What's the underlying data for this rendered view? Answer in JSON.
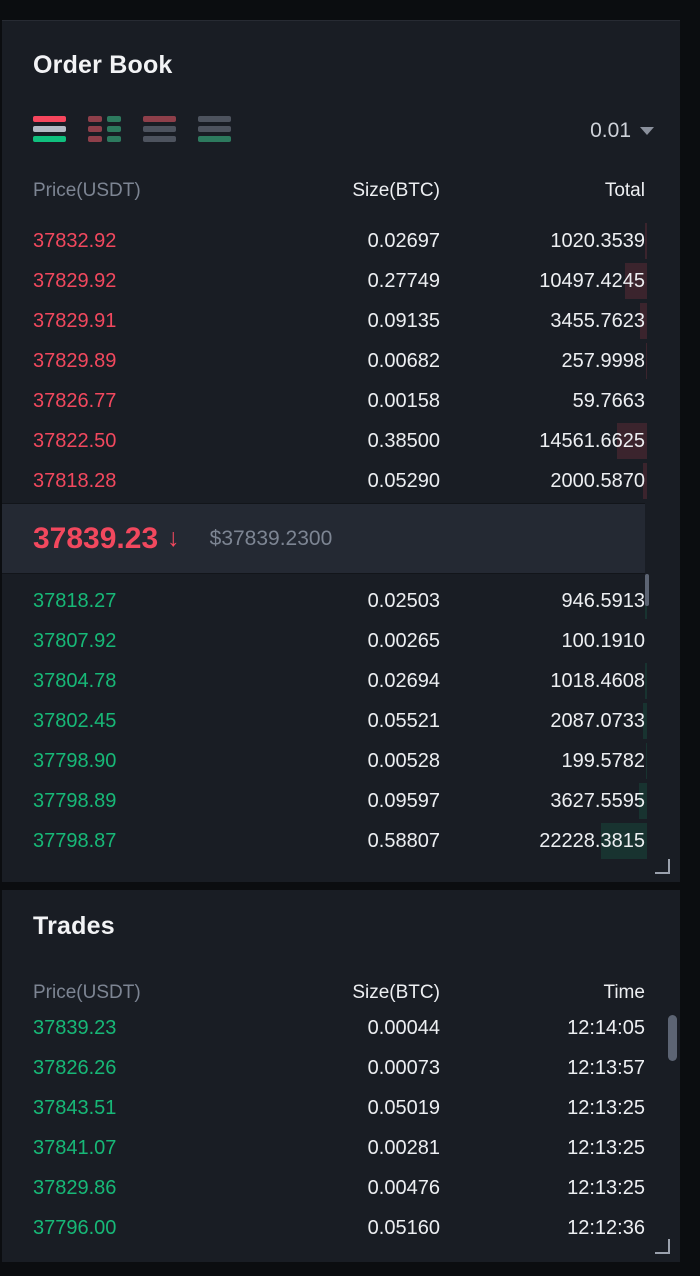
{
  "colors": {
    "panel_bg": "#191d24",
    "ask_red": "#f2485e",
    "bid_green": "#17b877",
    "muted_text": "#7d8593",
    "value_text": "#edeff2",
    "price_bar_bg": "#242933"
  },
  "icons": {
    "caret_down": "▾",
    "down_arrow": "↓",
    "view_modes": [
      "order-book-combined",
      "order-book-split",
      "asks-only",
      "bids-only"
    ]
  },
  "order_book": {
    "title": "Order Book",
    "tick_size": "0.01",
    "columns": {
      "price": "Price(USDT)",
      "size": "Size(BTC)",
      "total": "Total"
    },
    "asks": [
      {
        "price": "37832.92",
        "size": "0.02697",
        "total": "1020.3539",
        "depth": 2
      },
      {
        "price": "37829.92",
        "size": "0.27749",
        "total": "10497.4245",
        "depth": 22
      },
      {
        "price": "37829.91",
        "size": "0.09135",
        "total": "3455.7623",
        "depth": 7
      },
      {
        "price": "37829.89",
        "size": "0.00682",
        "total": "257.9998",
        "depth": 1
      },
      {
        "price": "37826.77",
        "size": "0.00158",
        "total": "59.7663",
        "depth": 0
      },
      {
        "price": "37822.50",
        "size": "0.38500",
        "total": "14561.6625",
        "depth": 30
      },
      {
        "price": "37818.28",
        "size": "0.05290",
        "total": "2000.5870",
        "depth": 4
      }
    ],
    "last_price": {
      "value": "37839.23",
      "direction": "down",
      "arrow": "↓",
      "usd": "$37839.2300"
    },
    "bids": [
      {
        "price": "37818.27",
        "size": "0.02503",
        "total": "946.5913",
        "depth": 2
      },
      {
        "price": "37807.92",
        "size": "0.00265",
        "total": "100.1910",
        "depth": 0
      },
      {
        "price": "37804.78",
        "size": "0.02694",
        "total": "1018.4608",
        "depth": 2
      },
      {
        "price": "37802.45",
        "size": "0.05521",
        "total": "2087.0733",
        "depth": 4
      },
      {
        "price": "37798.90",
        "size": "0.00528",
        "total": "199.5782",
        "depth": 1
      },
      {
        "price": "37798.89",
        "size": "0.09597",
        "total": "3627.5595",
        "depth": 8
      },
      {
        "price": "37798.87",
        "size": "0.58807",
        "total": "22228.3815",
        "depth": 46
      }
    ]
  },
  "trades": {
    "title": "Trades",
    "columns": {
      "price": "Price(USDT)",
      "size": "Size(BTC)",
      "time": "Time"
    },
    "rows": [
      {
        "price": "37839.23",
        "size": "0.00044",
        "time": "12:14:05"
      },
      {
        "price": "37826.26",
        "size": "0.00073",
        "time": "12:13:57"
      },
      {
        "price": "37843.51",
        "size": "0.05019",
        "time": "12:13:25"
      },
      {
        "price": "37841.07",
        "size": "0.00281",
        "time": "12:13:25"
      },
      {
        "price": "37829.86",
        "size": "0.00476",
        "time": "12:13:25"
      },
      {
        "price": "37796.00",
        "size": "0.05160",
        "time": "12:12:36"
      }
    ]
  }
}
